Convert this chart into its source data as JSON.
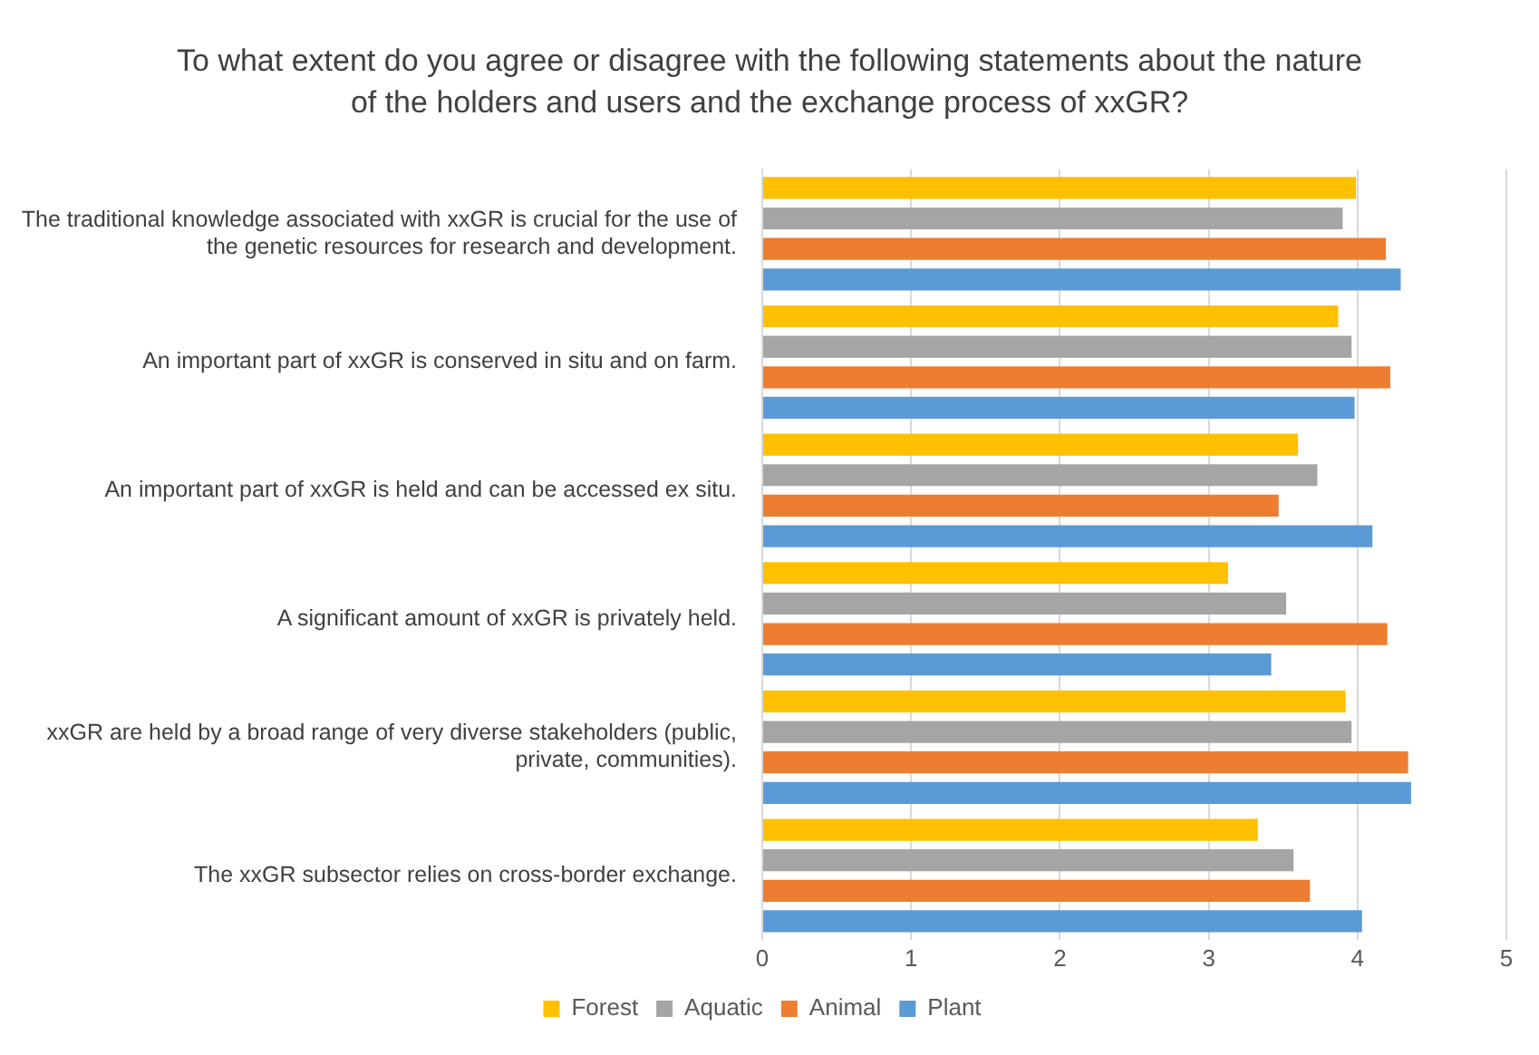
{
  "chart_data": {
    "type": "bar",
    "orientation": "horizontal",
    "title": "To what extent do you agree or disagree with the following statements about the nature of the holders and users and the exchange process of xxGR?",
    "categories": [
      "The traditional knowledge associated with xxGR is crucial for the use of the genetic resources for research and development.",
      "An important part of xxGR is conserved in situ and on farm.",
      "An important part of xxGR is held and can be accessed ex situ.",
      "A significant amount of xxGR is privately held.",
      "xxGR are held by a broad range of very diverse stakeholders (public, private, communities).",
      "The xxGR subsector relies on cross-border exchange."
    ],
    "series": [
      {
        "name": "Forest",
        "color": "#ffc000",
        "values": [
          3.99,
          3.87,
          3.6,
          3.13,
          3.92,
          3.33
        ]
      },
      {
        "name": "Aquatic",
        "color": "#a5a5a5",
        "values": [
          3.9,
          3.96,
          3.73,
          3.52,
          3.96,
          3.57
        ]
      },
      {
        "name": "Animal",
        "color": "#ed7d31",
        "values": [
          4.19,
          4.22,
          3.47,
          4.2,
          4.34,
          3.68
        ]
      },
      {
        "name": "Plant",
        "color": "#5b9bd5",
        "values": [
          4.29,
          3.98,
          4.1,
          3.42,
          4.36,
          4.03
        ]
      }
    ],
    "xlim": [
      0,
      5
    ],
    "xticks": [
      0,
      1,
      2,
      3,
      4,
      5
    ],
    "grid": "x",
    "legend": "bottom"
  }
}
